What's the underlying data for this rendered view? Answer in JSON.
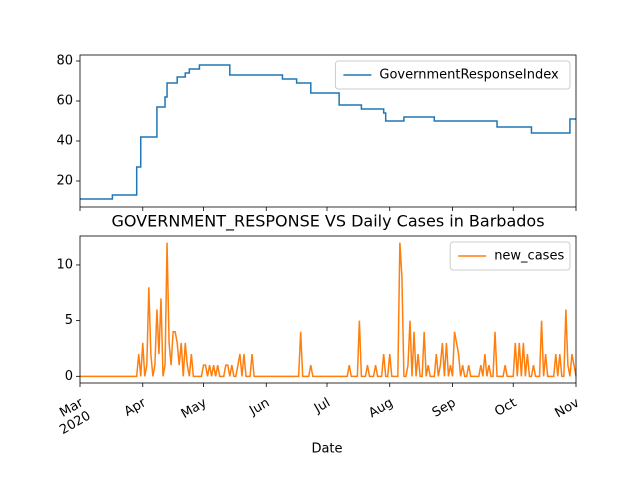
{
  "chart_data": [
    {
      "type": "line",
      "x": [
        0,
        16,
        16,
        28,
        28,
        30,
        30,
        38,
        38,
        42,
        42,
        43,
        43,
        48,
        48,
        52,
        52,
        54,
        54,
        59,
        59,
        74,
        74,
        100,
        100,
        107,
        107,
        114,
        114,
        128,
        128,
        139,
        139,
        150,
        150,
        151,
        151,
        160,
        160,
        175,
        175,
        206,
        206,
        223,
        223,
        242,
        242,
        245
      ],
      "series": [
        {
          "name": "GovernmentResponseIndex",
          "color": "#1f77b4",
          "values": [
            11,
            11,
            13,
            13,
            27,
            27,
            42,
            42,
            57,
            57,
            62,
            62,
            69,
            69,
            72,
            72,
            74,
            74,
            76,
            76,
            78,
            78,
            73,
            73,
            71,
            71,
            69,
            69,
            64,
            64,
            58,
            58,
            56,
            56,
            54,
            54,
            50,
            50,
            52,
            52,
            50,
            50,
            47,
            47,
            44,
            44,
            51,
            51
          ]
        }
      ],
      "xlim": [
        0,
        245
      ],
      "ylim": [
        7,
        83
      ],
      "yticks": [
        20,
        40,
        60,
        80
      ],
      "legend": "upper right"
    },
    {
      "type": "line",
      "title": "GOVERNMENT_RESPONSE VS Daily Cases in Barbados",
      "x_label": "Date",
      "x": [
        0,
        1,
        2,
        3,
        4,
        5,
        6,
        7,
        8,
        9,
        10,
        11,
        12,
        13,
        14,
        15,
        16,
        17,
        18,
        19,
        20,
        21,
        22,
        23,
        24,
        25,
        26,
        27,
        28,
        29,
        30,
        31,
        32,
        33,
        34,
        35,
        36,
        37,
        38,
        39,
        40,
        41,
        42,
        43,
        44,
        45,
        46,
        47,
        48,
        49,
        50,
        51,
        52,
        53,
        54,
        55,
        56,
        57,
        58,
        59,
        60,
        61,
        62,
        63,
        64,
        65,
        66,
        67,
        68,
        69,
        70,
        71,
        72,
        73,
        74,
        75,
        76,
        77,
        78,
        79,
        80,
        81,
        82,
        83,
        84,
        85,
        86,
        87,
        88,
        89,
        90,
        91,
        92,
        93,
        94,
        95,
        96,
        97,
        98,
        99,
        100,
        101,
        102,
        103,
        104,
        105,
        106,
        107,
        108,
        109,
        110,
        111,
        112,
        113,
        114,
        115,
        116,
        117,
        118,
        119,
        120,
        121,
        122,
        123,
        124,
        125,
        126,
        127,
        128,
        129,
        130,
        131,
        132,
        133,
        134,
        135,
        136,
        137,
        138,
        139,
        140,
        141,
        142,
        143,
        144,
        145,
        146,
        147,
        148,
        149,
        150,
        151,
        152,
        153,
        154,
        155,
        156,
        157,
        158,
        159,
        160,
        161,
        162,
        163,
        164,
        165,
        166,
        167,
        168,
        169,
        170,
        171,
        172,
        173,
        174,
        175,
        176,
        177,
        178,
        179,
        180,
        181,
        182,
        183,
        184,
        185,
        186,
        187,
        188,
        189,
        190,
        191,
        192,
        193,
        194,
        195,
        196,
        197,
        198,
        199,
        200,
        201,
        202,
        203,
        204,
        205,
        206,
        207,
        208,
        209,
        210,
        211,
        212,
        213,
        214,
        215,
        216,
        217,
        218,
        219,
        220,
        221,
        222,
        223,
        224,
        225,
        226,
        227,
        228,
        229,
        230,
        231,
        232,
        233,
        234,
        235,
        236,
        237,
        238,
        239,
        240,
        241,
        242,
        243,
        244,
        245
      ],
      "series": [
        {
          "name": "new_cases",
          "color": "#ff7f0e",
          "values": [
            0,
            0,
            0,
            0,
            0,
            0,
            0,
            0,
            0,
            0,
            0,
            0,
            0,
            0,
            0,
            0,
            0,
            0,
            0,
            0,
            0,
            0,
            0,
            0,
            0,
            0,
            0,
            0,
            0,
            2,
            0,
            3,
            0,
            1,
            8,
            2,
            0,
            1,
            6,
            2,
            7,
            0,
            1,
            12,
            3,
            1,
            4,
            4,
            3,
            1,
            3,
            0,
            3,
            1,
            0,
            2,
            0,
            0,
            0,
            0,
            0,
            1,
            1,
            0,
            1,
            0,
            1,
            0,
            1,
            0,
            0,
            0,
            1,
            1,
            0,
            1,
            0,
            0,
            1,
            2,
            0,
            2,
            0,
            0,
            0,
            2,
            0,
            0,
            0,
            0,
            0,
            0,
            0,
            0,
            0,
            0,
            0,
            0,
            0,
            0,
            0,
            0,
            0,
            0,
            0,
            0,
            0,
            0,
            0,
            4,
            0,
            0,
            0,
            0,
            1,
            0,
            0,
            0,
            0,
            0,
            0,
            0,
            0,
            0,
            0,
            0,
            0,
            0,
            0,
            0,
            0,
            0,
            0,
            1,
            0,
            0,
            0,
            0,
            5,
            0,
            0,
            0,
            1,
            0,
            0,
            0,
            1,
            0,
            0,
            0,
            2,
            0,
            0,
            2,
            0,
            0,
            0,
            0,
            12,
            9,
            0,
            0,
            1,
            5,
            0,
            4,
            0,
            2,
            0,
            0,
            4,
            0,
            1,
            0,
            0,
            0,
            2,
            0,
            1,
            3,
            0,
            3,
            0,
            1,
            0,
            4,
            3,
            2,
            0,
            1,
            0,
            0,
            1,
            0,
            0,
            0,
            0,
            0,
            1,
            0,
            2,
            0,
            1,
            0,
            0,
            4,
            0,
            0,
            0,
            0,
            1,
            0,
            0,
            0,
            0,
            3,
            0,
            3,
            0,
            3,
            0,
            2,
            0,
            0,
            1,
            0,
            0,
            0,
            5,
            0,
            2,
            0,
            0,
            0,
            0,
            2,
            0,
            2,
            0,
            0,
            6,
            1,
            0,
            2,
            1,
            0
          ]
        }
      ],
      "xlim": [
        0,
        245
      ],
      "ylim": [
        -0.6,
        12.6
      ],
      "yticks": [
        0,
        5,
        10
      ],
      "xticks": [
        {
          "value": 0,
          "label": "Mar\n2020"
        },
        {
          "value": 31,
          "label": "Apr"
        },
        {
          "value": 61,
          "label": "May"
        },
        {
          "value": 92,
          "label": "Jun"
        },
        {
          "value": 122,
          "label": "Jul"
        },
        {
          "value": 153,
          "label": "Aug"
        },
        {
          "value": 184,
          "label": "Sep"
        },
        {
          "value": 214,
          "label": "Oct"
        },
        {
          "value": 245,
          "label": "Nov"
        }
      ],
      "legend": "upper right"
    }
  ]
}
